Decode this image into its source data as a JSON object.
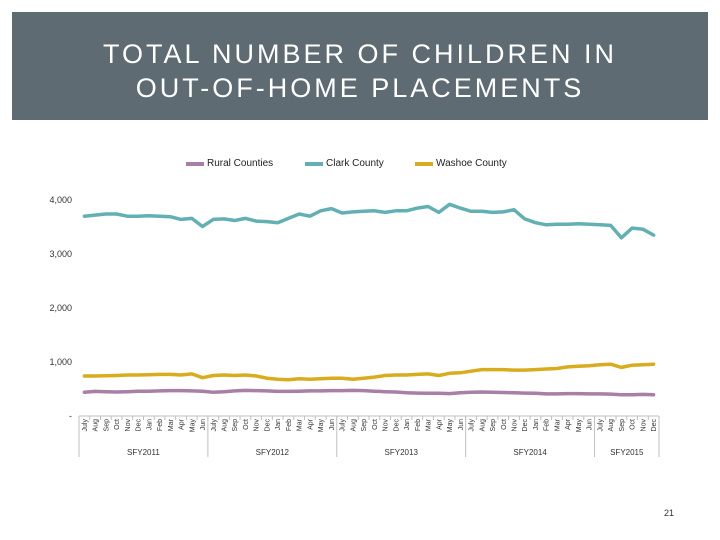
{
  "slide": {
    "title_line1": "TOTAL NUMBER OF CHILDREN IN",
    "title_line2": "OUT-OF-HOME PLACEMENTS",
    "page_number": "21"
  },
  "chart_data": {
    "type": "line",
    "title": "TOTAL NUMBER OF CHILDREN IN OUT-OF-HOME PLACEMENTS",
    "xlabel": "",
    "ylabel": "",
    "ylim": [
      0,
      4000
    ],
    "y_ticks": [
      0,
      1000,
      2000,
      3000,
      4000
    ],
    "y_tick_labels": [
      "-",
      "1,000",
      "2,000",
      "3,000",
      "4,000"
    ],
    "legend_position": "top",
    "categories": [
      "July",
      "Aug",
      "Sep",
      "Oct",
      "Nov",
      "Dec",
      "Jan",
      "Feb",
      "Mar",
      "Apr",
      "May",
      "Jun",
      "July",
      "Aug",
      "Sep",
      "Oct",
      "Nov",
      "Dec",
      "Jan",
      "Feb",
      "Mar",
      "Apr",
      "May",
      "Jun",
      "July",
      "Aug",
      "Sep",
      "Oct",
      "Nov",
      "Dec",
      "Jan",
      "Feb",
      "Mar",
      "Apr",
      "May",
      "Jun",
      "July",
      "Aug",
      "Sep",
      "Oct",
      "Nov",
      "Dec",
      "Jan",
      "Feb",
      "Mar",
      "Apr",
      "May",
      "Jun",
      "July",
      "Aug",
      "Sep",
      "Oct",
      "Nov",
      "Dec"
    ],
    "fiscal_years": [
      {
        "label": "SFY2011",
        "start": 0,
        "end": 11
      },
      {
        "label": "SFY2012",
        "start": 12,
        "end": 23
      },
      {
        "label": "SFY2013",
        "start": 24,
        "end": 35
      },
      {
        "label": "SFY2014",
        "start": 36,
        "end": 47
      },
      {
        "label": "SFY2015",
        "start": 48,
        "end": 53
      }
    ],
    "series": [
      {
        "name": "Rural Counties",
        "color": "#a87fa6",
        "values": [
          440,
          455,
          450,
          445,
          450,
          460,
          460,
          465,
          470,
          470,
          465,
          460,
          440,
          450,
          465,
          475,
          470,
          465,
          455,
          455,
          460,
          465,
          465,
          470,
          470,
          475,
          470,
          460,
          450,
          445,
          430,
          425,
          420,
          420,
          415,
          430,
          440,
          445,
          440,
          435,
          430,
          425,
          420,
          410,
          410,
          415,
          415,
          410,
          410,
          405,
          395,
          395,
          400,
          395
        ]
      },
      {
        "name": "Clark County",
        "color": "#63b0b4",
        "values": [
          3700,
          3720,
          3740,
          3740,
          3700,
          3700,
          3710,
          3700,
          3690,
          3640,
          3660,
          3510,
          3640,
          3650,
          3620,
          3660,
          3610,
          3600,
          3580,
          3660,
          3740,
          3700,
          3800,
          3840,
          3760,
          3780,
          3790,
          3800,
          3770,
          3800,
          3800,
          3850,
          3880,
          3770,
          3920,
          3850,
          3790,
          3790,
          3770,
          3780,
          3820,
          3650,
          3580,
          3540,
          3550,
          3550,
          3560,
          3550,
          3540,
          3530,
          3300,
          3480,
          3460,
          3350
        ]
      },
      {
        "name": "Washoe County",
        "color": "#d8ac1c",
        "values": [
          740,
          740,
          745,
          750,
          760,
          760,
          765,
          770,
          770,
          760,
          780,
          710,
          750,
          760,
          750,
          760,
          740,
          700,
          680,
          670,
          690,
          680,
          690,
          700,
          700,
          680,
          700,
          720,
          750,
          760,
          760,
          770,
          780,
          750,
          790,
          800,
          830,
          860,
          860,
          860,
          850,
          850,
          860,
          870,
          880,
          910,
          920,
          930,
          950,
          960,
          900,
          940,
          950,
          960
        ]
      }
    ]
  }
}
